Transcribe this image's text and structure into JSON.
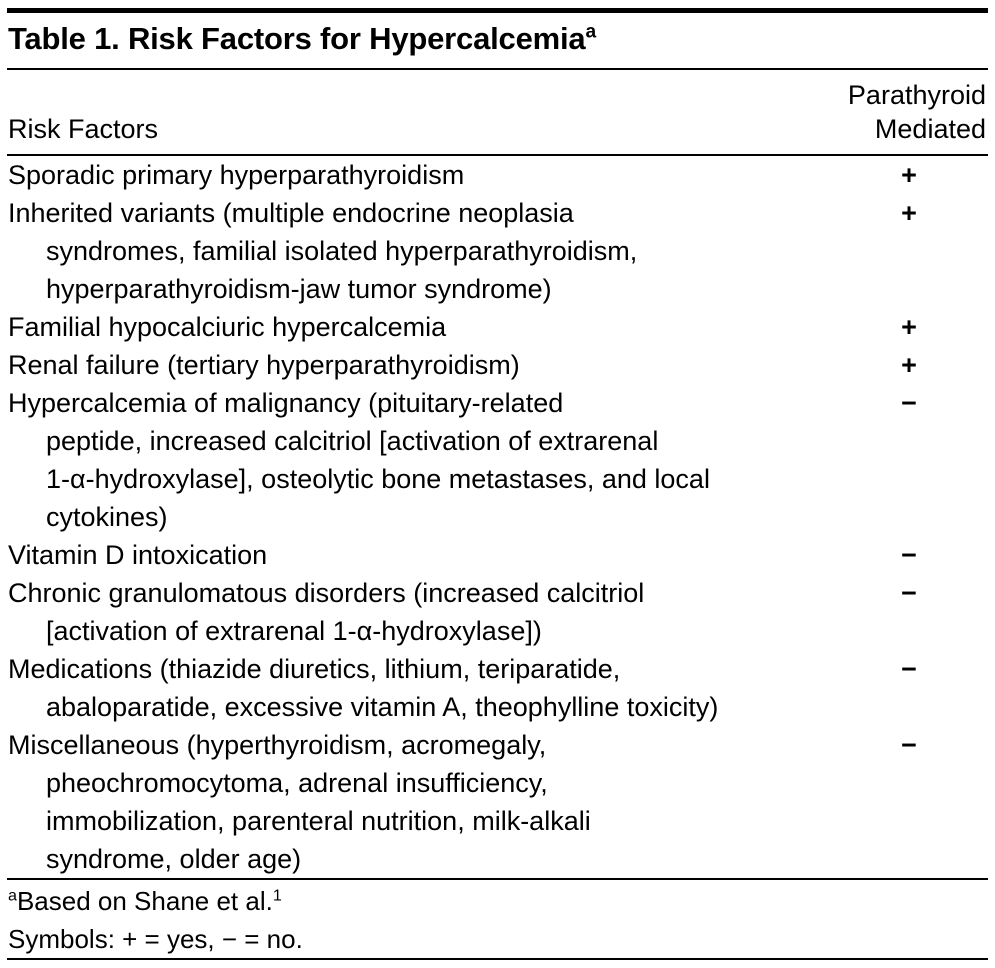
{
  "colors": {
    "text": "#000000",
    "rule": "#000000",
    "background": "#ffffff"
  },
  "table": {
    "title": "Table 1. Risk Factors for Hypercalcemia",
    "title_footnote_marker": "a",
    "columns": {
      "risk_factors": "Risk Factors",
      "parathyroid_mediated_line1": "Parathyroid",
      "parathyroid_mediated_line2": "Mediated"
    },
    "rows": [
      {
        "risk_factor": "Sporadic primary hyperparathyroidism",
        "parathyroid_mediated": "+",
        "lines": [
          "Sporadic primary hyperparathyroidism"
        ]
      },
      {
        "risk_factor": "Inherited variants (multiple endocrine neoplasia syndromes, familial isolated hyperparathyroidism, hyperparathyroidism-jaw tumor syndrome)",
        "parathyroid_mediated": "+",
        "lines": [
          "Inherited variants (multiple endocrine neoplasia",
          "syndromes, familial isolated hyperparathyroidism,",
          "hyperparathyroidism-jaw tumor syndrome)"
        ]
      },
      {
        "risk_factor": "Familial hypocalciuric hypercalcemia",
        "parathyroid_mediated": "+",
        "lines": [
          "Familial hypocalciuric hypercalcemia"
        ]
      },
      {
        "risk_factor": "Renal failure (tertiary hyperparathyroidism)",
        "parathyroid_mediated": "+",
        "lines": [
          "Renal failure (tertiary hyperparathyroidism)"
        ]
      },
      {
        "risk_factor": "Hypercalcemia of malignancy (pituitary-related peptide, increased calcitriol [activation of extrarenal 1-α-hydroxylase], osteolytic bone metastases, and local cytokines)",
        "parathyroid_mediated": "−",
        "lines": [
          "Hypercalcemia of malignancy (pituitary-related",
          "peptide, increased calcitriol [activation of extrarenal",
          "1-α-hydroxylase], osteolytic bone metastases, and local",
          "cytokines)"
        ]
      },
      {
        "risk_factor": "Vitamin D intoxication",
        "parathyroid_mediated": "−",
        "lines": [
          "Vitamin D intoxication"
        ]
      },
      {
        "risk_factor": "Chronic granulomatous disorders (increased calcitriol [activation of extrarenal 1-α-hydroxylase])",
        "parathyroid_mediated": "−",
        "lines": [
          "Chronic granulomatous disorders (increased calcitriol",
          "[activation of extrarenal 1-α-hydroxylase])"
        ]
      },
      {
        "risk_factor": "Medications (thiazide diuretics, lithium, teriparatide, abaloparatide, excessive vitamin A, theophylline toxicity)",
        "parathyroid_mediated": "−",
        "lines": [
          "Medications (thiazide diuretics, lithium, teriparatide,",
          "abaloparatide, excessive vitamin A, theophylline toxicity)"
        ]
      },
      {
        "risk_factor": "Miscellaneous (hyperthyroidism, acromegaly, pheochromocytoma, adrenal insufficiency, immobilization, parenteral nutrition, milk-alkali syndrome, older age)",
        "parathyroid_mediated": "−",
        "lines": [
          "Miscellaneous (hyperthyroidism, acromegaly,",
          "pheochromocytoma, adrenal insufficiency,",
          "immobilization, parenteral nutrition, milk-alkali",
          "syndrome, older age)"
        ]
      }
    ]
  },
  "footnotes": {
    "a_marker": "a",
    "a_text": "Based on Shane et al.",
    "a_ref": "1",
    "symbols": "Symbols: + = yes, − = no."
  }
}
